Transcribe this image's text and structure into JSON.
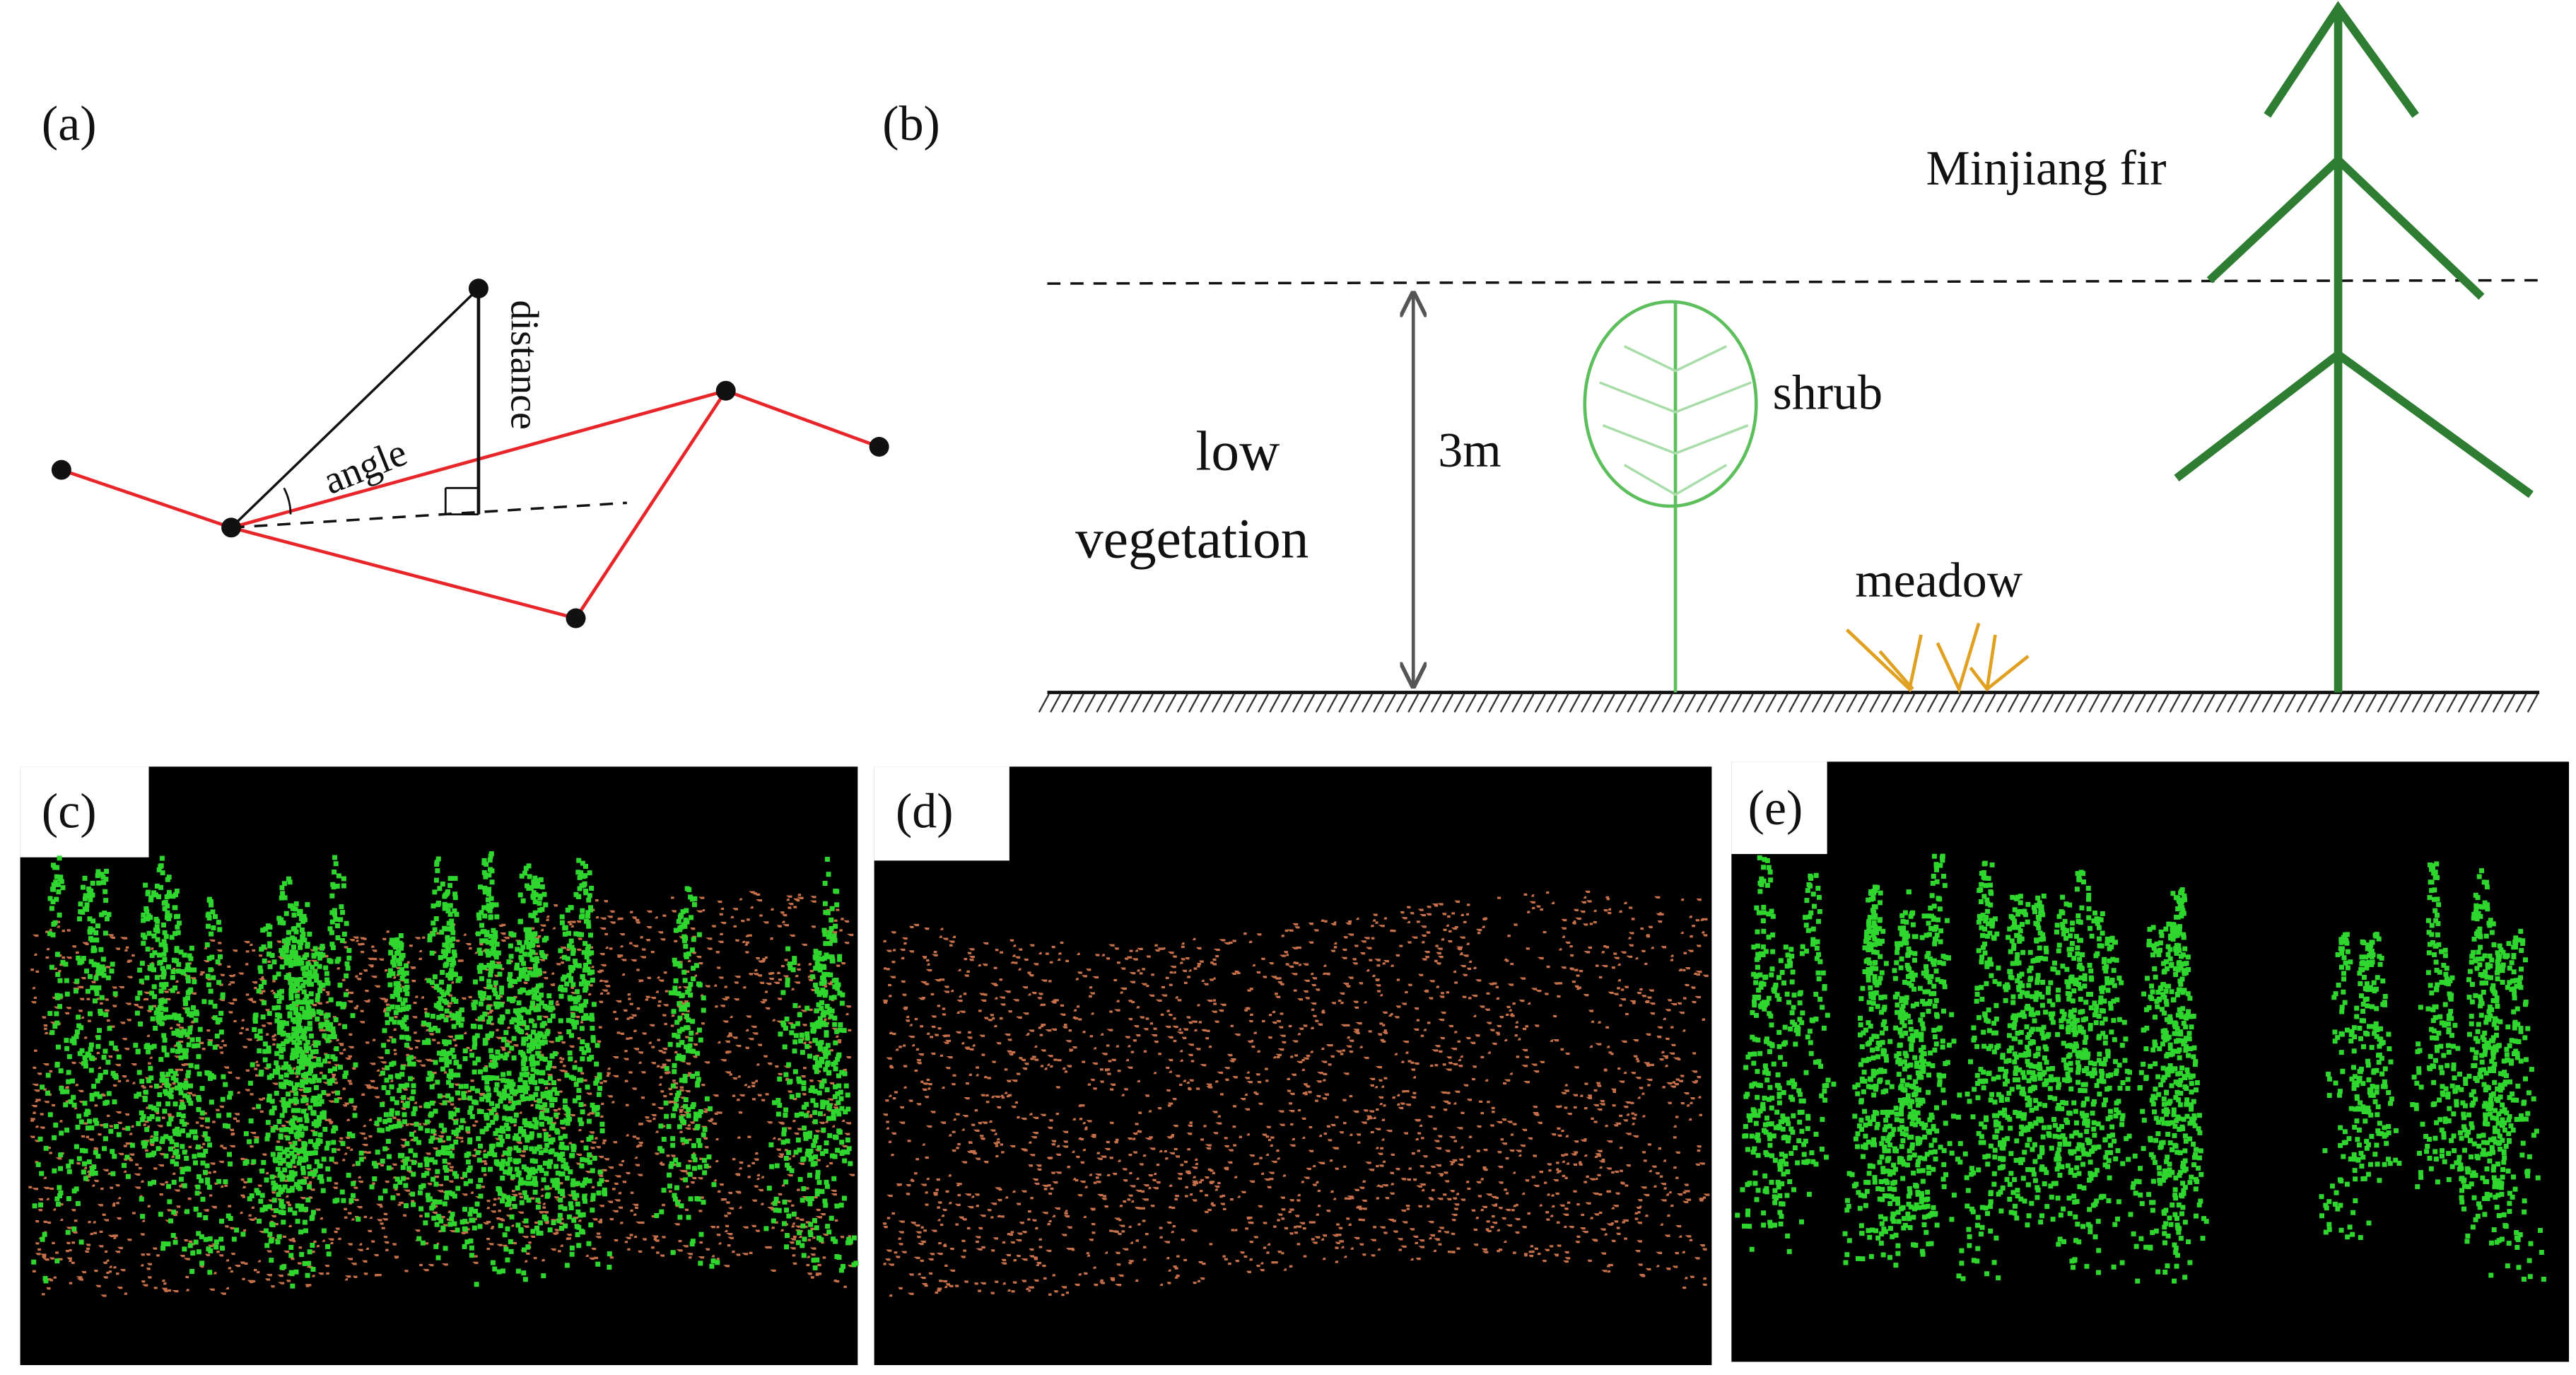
{
  "panels": {
    "a": {
      "label": "(a)",
      "angle": "angle",
      "distance": "distance"
    },
    "b": {
      "label": "(b)",
      "low_vegetation": [
        "low",
        "vegetation"
      ],
      "height": "3m",
      "shrub": "shrub",
      "meadow": "meadow",
      "fir": "Minjiang fir"
    },
    "c": {
      "label": "(c)"
    },
    "d": {
      "label": "(d)"
    },
    "e": {
      "label": "(e)"
    }
  }
}
